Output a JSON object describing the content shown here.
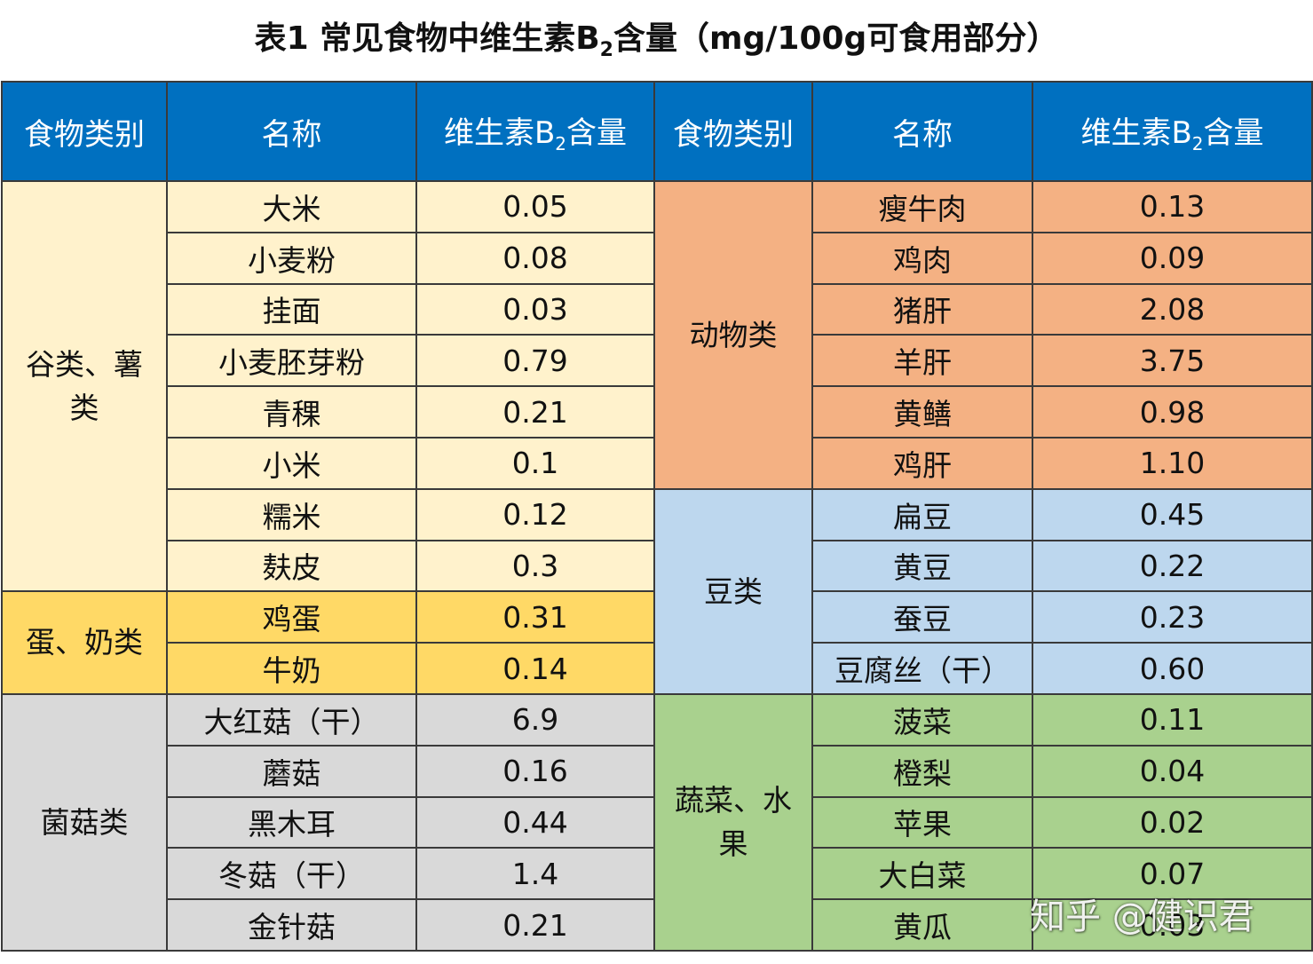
{
  "title": {
    "prefix": "表1 常见食物中维生素B",
    "sub": "2",
    "suffix": "含量（mg/100g可食用部分）"
  },
  "header": {
    "category": "食物类别",
    "name": "名称",
    "content_prefix": "维生素B",
    "content_sub": "2",
    "content_suffix": "含量"
  },
  "left_groups": [
    {
      "category": "谷类、薯类",
      "items": [
        {
          "name": "大米",
          "value": "0.05"
        },
        {
          "name": "小麦粉",
          "value": "0.08"
        },
        {
          "name": "挂面",
          "value": "0.03"
        },
        {
          "name": "小麦胚芽粉",
          "value": "0.79"
        },
        {
          "name": "青稞",
          "value": "0.21"
        },
        {
          "name": "小米",
          "value": "0.1"
        },
        {
          "name": "糯米",
          "value": "0.12"
        },
        {
          "name": "麸皮",
          "value": "0.3"
        }
      ]
    },
    {
      "category": "蛋、奶类",
      "items": [
        {
          "name": "鸡蛋",
          "value": "0.31"
        },
        {
          "name": "牛奶",
          "value": "0.14"
        }
      ]
    },
    {
      "category": "菌菇类",
      "items": [
        {
          "name": "大红菇（干）",
          "value": "6.9"
        },
        {
          "name": "蘑菇",
          "value": "0.16"
        },
        {
          "name": "黑木耳",
          "value": "0.44"
        },
        {
          "name": "冬菇（干）",
          "value": "1.4"
        },
        {
          "name": "金针菇",
          "value": "0.21"
        }
      ]
    }
  ],
  "right_groups": [
    {
      "category": "动物类",
      "items": [
        {
          "name": "瘦牛肉",
          "value": "0.13"
        },
        {
          "name": "鸡肉",
          "value": "0.09"
        },
        {
          "name": "猪肝",
          "value": "2.08"
        },
        {
          "name": "羊肝",
          "value": "3.75"
        },
        {
          "name": "黄鳝",
          "value": "0.98"
        },
        {
          "name": "鸡肝",
          "value": "1.10"
        }
      ]
    },
    {
      "category": "豆类",
      "items": [
        {
          "name": "扁豆",
          "value": "0.45"
        },
        {
          "name": "黄豆",
          "value": "0.22"
        },
        {
          "name": "蚕豆",
          "value": "0.23"
        },
        {
          "name": "豆腐丝（干）",
          "value": "0.60"
        }
      ]
    },
    {
      "category": "蔬菜、水果",
      "items": [
        {
          "name": "菠菜",
          "value": "0.11"
        },
        {
          "name": "橙梨",
          "value": "0.04"
        },
        {
          "name": "苹果",
          "value": "0.02"
        },
        {
          "name": "大白菜",
          "value": "0.07"
        },
        {
          "name": "黄瓜",
          "value": "0.03"
        }
      ]
    }
  ],
  "colors": {
    "header": "#0070c0",
    "grain": "#fff2cc",
    "egg": "#ffd966",
    "mushroom": "#d9d9d9",
    "meat": "#f4b183",
    "bean": "#bdd7ee",
    "vegetable": "#a9d18e"
  },
  "watermark": "知乎 @健识君"
}
